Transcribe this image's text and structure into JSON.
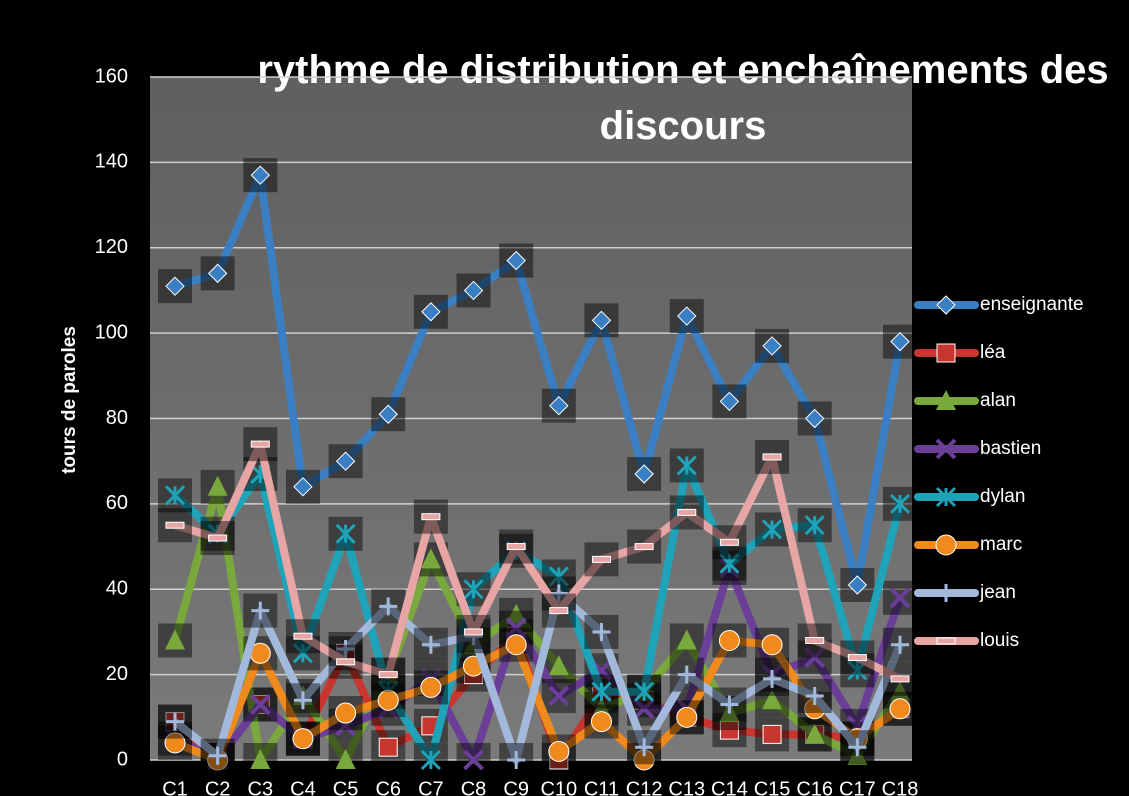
{
  "chart_data": {
    "type": "line",
    "title": "rythme de distribution et enchaînements des discours",
    "y_label": "tours de paroles",
    "categories": [
      "C1",
      "C2",
      "C3",
      "C4",
      "C5",
      "C6",
      "C7",
      "C8",
      "C9",
      "C10",
      "C11",
      "C12",
      "C13",
      "C14",
      "C15",
      "C16",
      "C17",
      "C18"
    ],
    "ylim": [
      0,
      160
    ],
    "yticks": [
      0,
      20,
      40,
      60,
      80,
      100,
      120,
      140,
      160
    ],
    "grid": true,
    "legend": "right",
    "series": [
      {
        "name": "enseignante",
        "color": "#3a7fc4",
        "values": [
          111,
          114,
          137,
          64,
          70,
          81,
          105,
          110,
          117,
          83,
          103,
          67,
          104,
          84,
          97,
          80,
          41,
          98
        ]
      },
      {
        "name": "léa",
        "color": "#c8362f",
        "values": [
          9,
          0,
          13,
          5,
          25,
          3,
          8,
          20,
          29,
          0,
          15,
          14,
          10,
          7,
          6,
          6,
          5,
          12
        ]
      },
      {
        "name": "alan",
        "color": "#79a83c",
        "values": [
          28,
          64,
          0,
          15,
          0,
          20,
          47,
          27,
          34,
          22,
          12,
          16,
          28,
          11,
          14,
          6,
          1,
          16
        ]
      },
      {
        "name": "bastien",
        "color": "#6b3f98",
        "values": [
          5,
          0,
          13,
          5,
          8,
          12,
          19,
          0,
          31,
          15,
          21,
          12,
          12,
          45,
          20,
          24,
          8,
          38
        ]
      },
      {
        "name": "dylan",
        "color": "#1fa3b8",
        "values": [
          62,
          53,
          67,
          25,
          53,
          16,
          0,
          40,
          49,
          43,
          16,
          16,
          69,
          46,
          54,
          55,
          21,
          60
        ]
      },
      {
        "name": "marc",
        "color": "#f08a1c",
        "values": [
          4,
          0,
          25,
          5,
          11,
          14,
          17,
          22,
          27,
          2,
          9,
          0,
          10,
          28,
          27,
          12,
          5,
          12
        ]
      },
      {
        "name": "jean",
        "color": "#a3b9dc",
        "values": [
          9,
          1,
          35,
          14,
          26,
          36,
          27,
          29,
          0,
          39,
          30,
          3,
          20,
          13,
          19,
          15,
          3,
          27
        ]
      },
      {
        "name": "louis",
        "color": "#e8a5a5",
        "values": [
          55,
          52,
          74,
          29,
          23,
          20,
          57,
          30,
          50,
          35,
          47,
          50,
          58,
          51,
          71,
          28,
          24,
          19
        ]
      }
    ]
  }
}
